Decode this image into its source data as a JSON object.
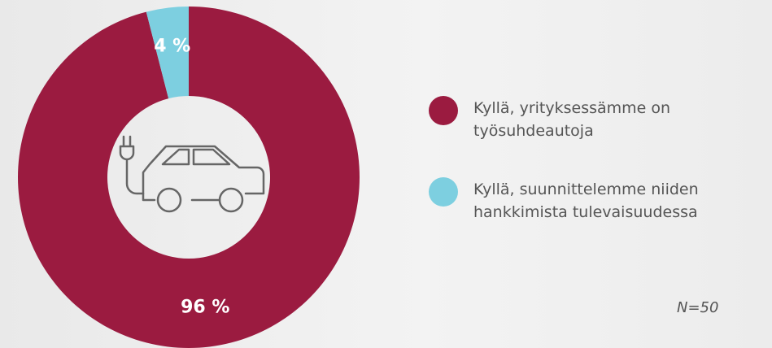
{
  "chart_data": {
    "type": "donut",
    "categories": [
      "Kyllä, yrityksessämme on työsuhdeautoja",
      "Kyllä, suunnittelemme niiden hankkimista tulevaisuudessa"
    ],
    "values": [
      96,
      4
    ],
    "value_labels": [
      "96 %",
      "4 %"
    ],
    "colors": [
      "#9b1b40",
      "#7dcfe0"
    ],
    "annotation": "N=50"
  }
}
